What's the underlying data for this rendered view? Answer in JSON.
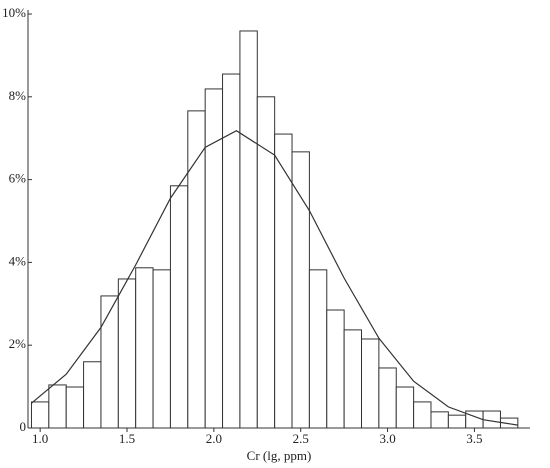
{
  "chart_data": {
    "type": "histogram",
    "xlabel": "Cr (lg, ppm)",
    "bins": [
      0.95,
      1.05,
      1.15,
      1.25,
      1.35,
      1.45,
      1.55,
      1.65,
      1.75,
      1.85,
      1.95,
      2.05,
      2.15,
      2.25,
      2.35,
      2.45,
      2.55,
      2.65,
      2.75,
      2.85,
      2.95,
      3.05,
      3.15,
      3.25,
      3.35,
      3.45,
      3.55,
      3.65,
      3.75
    ],
    "values": [
      0.63,
      1.04,
      0.99,
      1.6,
      3.19,
      3.6,
      3.87,
      3.82,
      5.85,
      7.66,
      8.19,
      8.55,
      9.59,
      8.0,
      7.1,
      6.67,
      3.82,
      2.85,
      2.37,
      2.15,
      1.45,
      0.99,
      0.63,
      0.39,
      0.31,
      0.41,
      0.41,
      0.24
    ],
    "color": "#ffffff",
    "curve": {
      "x": [
        0.95,
        1.15,
        1.35,
        1.55,
        1.75,
        1.95,
        2.13,
        2.35,
        2.55,
        2.75,
        2.95,
        3.15,
        3.35,
        3.55,
        3.75
      ],
      "y": [
        0.6,
        1.3,
        2.43,
        3.94,
        5.55,
        6.78,
        7.18,
        6.59,
        5.25,
        3.62,
        2.17,
        1.13,
        0.51,
        0.2,
        0.07
      ]
    },
    "xlim": [
      0.93,
      3.82
    ],
    "ylim": [
      0,
      10
    ],
    "xticks": [
      {
        "value": 1.0,
        "label": "1.0"
      },
      1.5,
      {
        "value": 2.0,
        "label": "2.0"
      },
      2.5,
      {
        "value": 3.0,
        "label": "3.0"
      },
      3.5
    ],
    "yticks": [
      0,
      {
        "value": 2,
        "label": "2%"
      },
      {
        "value": 4,
        "label": "4%"
      },
      {
        "value": 6,
        "label": "6%"
      },
      {
        "value": 8,
        "label": "8%"
      },
      {
        "value": 10,
        "label": "10%"
      }
    ]
  }
}
